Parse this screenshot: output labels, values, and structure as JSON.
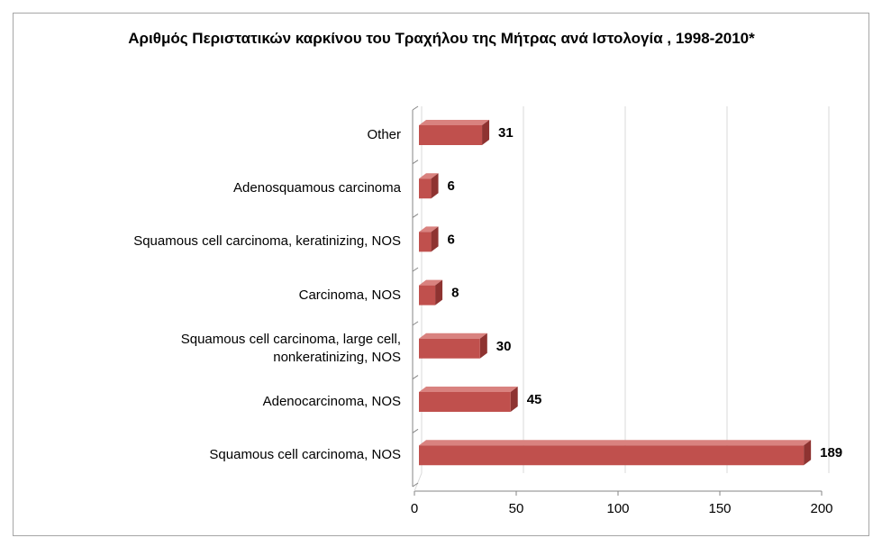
{
  "chart_data": {
    "type": "bar",
    "orientation": "horizontal",
    "title": "Αριθμός Περιστατικών καρκίνου του Τραχήλου της Μήτρας ανά Ιστολογία , 1998-2010*",
    "categories": [
      "Other",
      "Adenosquamous carcinoma",
      "Squamous cell carcinoma, keratinizing, NOS",
      "Carcinoma, NOS",
      "Squamous cell carcinoma, large cell, nonkeratinizing, NOS",
      "Adenocarcinoma, NOS",
      "Squamous cell carcinoma, NOS"
    ],
    "values": [
      31,
      6,
      6,
      8,
      30,
      45,
      189
    ],
    "color": "#c0504d",
    "xlim": [
      0,
      200
    ],
    "xticks": [
      0,
      50,
      100,
      150,
      200
    ],
    "grid": true
  }
}
